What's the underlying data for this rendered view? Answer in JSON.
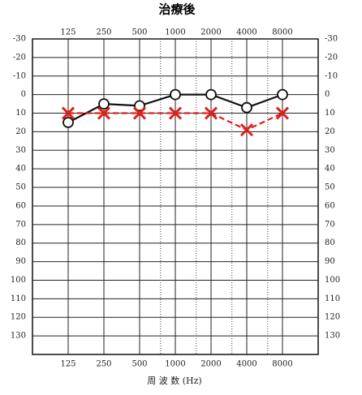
{
  "chart_data": {
    "type": "line",
    "title": "治療後",
    "x_label": "周 波 数 (Hz)",
    "x": [
      125,
      250,
      500,
      1000,
      2000,
      4000,
      8000
    ],
    "xscale": "log",
    "xlim": [
      62.5,
      16000
    ],
    "xticks": [
      125,
      250,
      500,
      1000,
      2000,
      4000,
      8000
    ],
    "x_minor_grid": [
      750,
      1500,
      3000,
      6000
    ],
    "ylim": [
      -30,
      140
    ],
    "y_inverted": true,
    "yticks": [
      -30,
      -20,
      -10,
      0,
      10,
      20,
      30,
      40,
      50,
      60,
      70,
      80,
      90,
      100,
      110,
      120,
      130
    ],
    "grid": true,
    "series": [
      {
        "color": "#111111",
        "marker": "circle",
        "dashed": false,
        "values": [
          15,
          5,
          6,
          0,
          0,
          7,
          0
        ]
      },
      {
        "color": "#e0201b",
        "marker": "x",
        "dashed": true,
        "values": [
          10,
          10,
          10,
          10,
          10,
          19,
          10
        ]
      }
    ]
  }
}
